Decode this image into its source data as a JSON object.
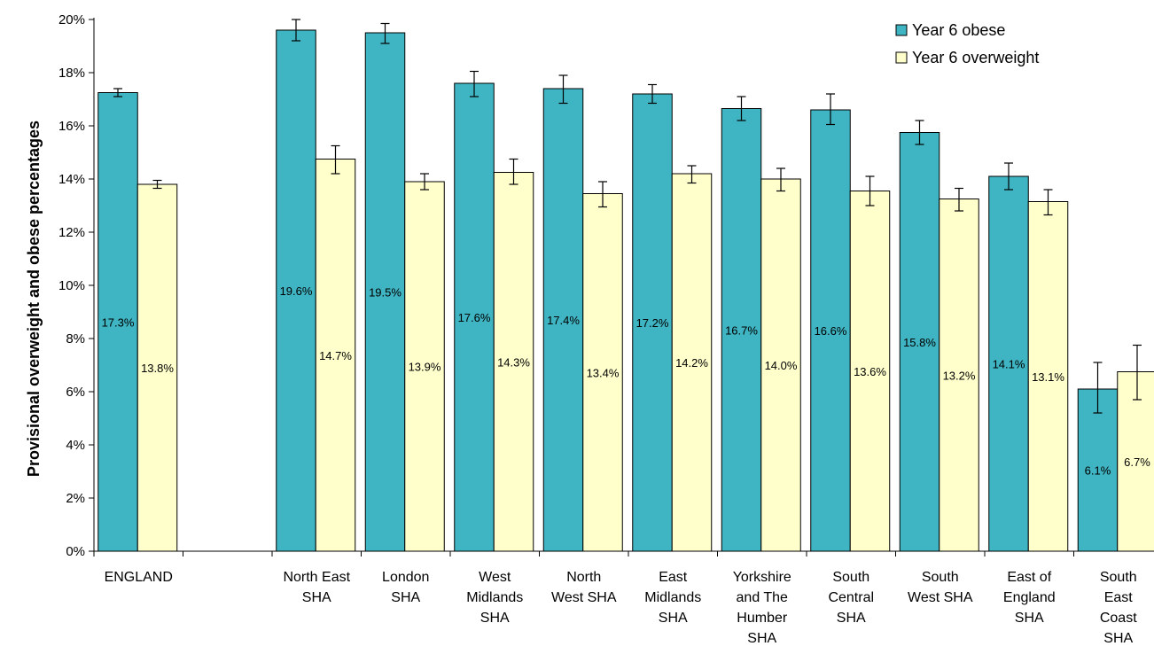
{
  "chart_data": {
    "type": "bar",
    "ylabel": "Provisional overweight and obese percentages",
    "ylim": [
      0,
      20
    ],
    "ytick_step": 2,
    "ytick_suffix": "%",
    "grid": false,
    "legend_position": "top-right",
    "categories": [
      {
        "label": "ENGLAND",
        "lines": [
          "ENGLAND"
        ]
      },
      {
        "label": "",
        "lines": []
      },
      {
        "label": "North East SHA",
        "lines": [
          "North East",
          "SHA"
        ]
      },
      {
        "label": "London SHA",
        "lines": [
          "London",
          "SHA"
        ]
      },
      {
        "label": "West Midlands SHA",
        "lines": [
          "West",
          "Midlands",
          "SHA"
        ]
      },
      {
        "label": "North West SHA",
        "lines": [
          "North",
          "West SHA"
        ]
      },
      {
        "label": "East Midlands SHA",
        "lines": [
          "East",
          "Midlands",
          "SHA"
        ]
      },
      {
        "label": "Yorkshire and The Humber SHA",
        "lines": [
          "Yorkshire",
          "and The",
          "Humber",
          "SHA"
        ]
      },
      {
        "label": "South Central SHA",
        "lines": [
          "South",
          "Central",
          "SHA"
        ]
      },
      {
        "label": "South West SHA",
        "lines": [
          "South",
          "West SHA"
        ]
      },
      {
        "label": "East of England SHA",
        "lines": [
          "East of",
          "England",
          "SHA"
        ]
      },
      {
        "label": "South East Coast SHA",
        "lines": [
          "South",
          "East",
          "Coast",
          "SHA"
        ]
      }
    ],
    "series": [
      {
        "name": "Year 6 obese",
        "color": "#3fb4c2",
        "values": [
          17.25,
          null,
          19.6,
          19.5,
          17.6,
          17.4,
          17.2,
          16.65,
          16.6,
          15.75,
          14.1,
          6.1
        ],
        "error_low": [
          17.1,
          null,
          19.2,
          19.1,
          17.1,
          16.85,
          16.85,
          16.2,
          16.05,
          15.3,
          13.6,
          5.2
        ],
        "error_high": [
          17.4,
          null,
          20.0,
          19.85,
          18.05,
          17.9,
          17.55,
          17.1,
          17.2,
          16.2,
          14.6,
          7.1
        ],
        "data_labels": [
          "17.3%",
          "",
          "19.6%",
          "19.5%",
          "17.6%",
          "17.4%",
          "17.2%",
          "16.7%",
          "16.6%",
          "15.8%",
          "14.1%",
          "6.1%"
        ]
      },
      {
        "name": "Year 6 overweight",
        "color": "#ffffcc",
        "values": [
          13.8,
          null,
          14.75,
          13.9,
          14.25,
          13.45,
          14.2,
          14.0,
          13.55,
          13.25,
          13.15,
          6.75
        ],
        "error_low": [
          13.65,
          null,
          14.2,
          13.6,
          13.8,
          12.95,
          13.85,
          13.55,
          13.0,
          12.8,
          12.65,
          5.7
        ],
        "error_high": [
          13.95,
          null,
          15.25,
          14.2,
          14.75,
          13.9,
          14.5,
          14.4,
          14.1,
          13.65,
          13.6,
          7.75
        ],
        "data_labels": [
          "13.8%",
          "",
          "14.7%",
          "13.9%",
          "14.3%",
          "13.4%",
          "14.2%",
          "14.0%",
          "13.6%",
          "13.2%",
          "13.1%",
          "6.7%"
        ]
      }
    ]
  }
}
